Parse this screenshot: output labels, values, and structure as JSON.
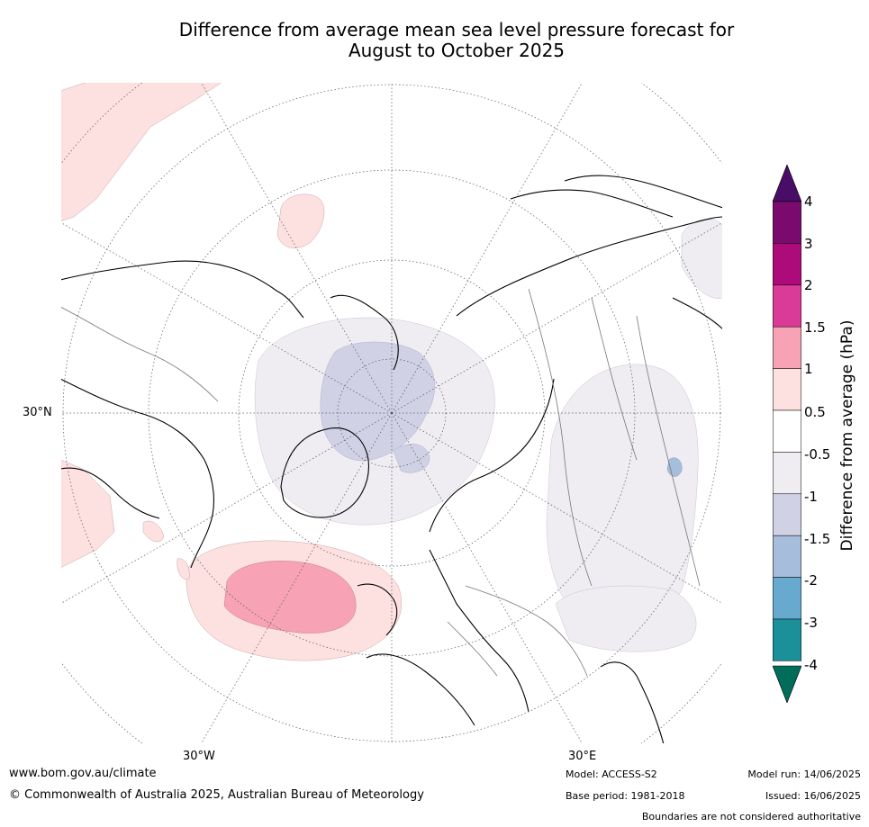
{
  "title_line1": "Difference from average mean sea level pressure forecast for",
  "title_line2": "August to October 2025",
  "axis_labels": {
    "lat_30n": "30°N",
    "lon_30w": "30°W",
    "lon_30e": "30°E"
  },
  "colorbar": {
    "title": "Difference from average (hPa)",
    "ticks": [
      "4",
      "3",
      "2",
      "1.5",
      "1",
      "0.5",
      "-0.5",
      "-1",
      "-1.5",
      "-2",
      "-3",
      "-4"
    ],
    "colors": [
      "#4a0d67",
      "#7b0a6e",
      "#ad0a7a",
      "#da3a98",
      "#f7a2b5",
      "#fde0e0",
      "#ffffff",
      "#efecf2",
      "#d0d1e5",
      "#a6bddb",
      "#67a9cf",
      "#1c9099",
      "#016c59"
    ]
  },
  "footer": {
    "website": "www.bom.gov.au/climate",
    "copyright": "© Commonwealth of Australia 2025, Australian Bureau of Meteorology",
    "model": "Model: ACCESS-S2",
    "base_period": "Base period: 1981-2018",
    "model_run": "Model run: 14/06/2025",
    "issued": "Issued: 16/06/2025",
    "disclaimer": "Boundaries are not considered authoritative"
  }
}
